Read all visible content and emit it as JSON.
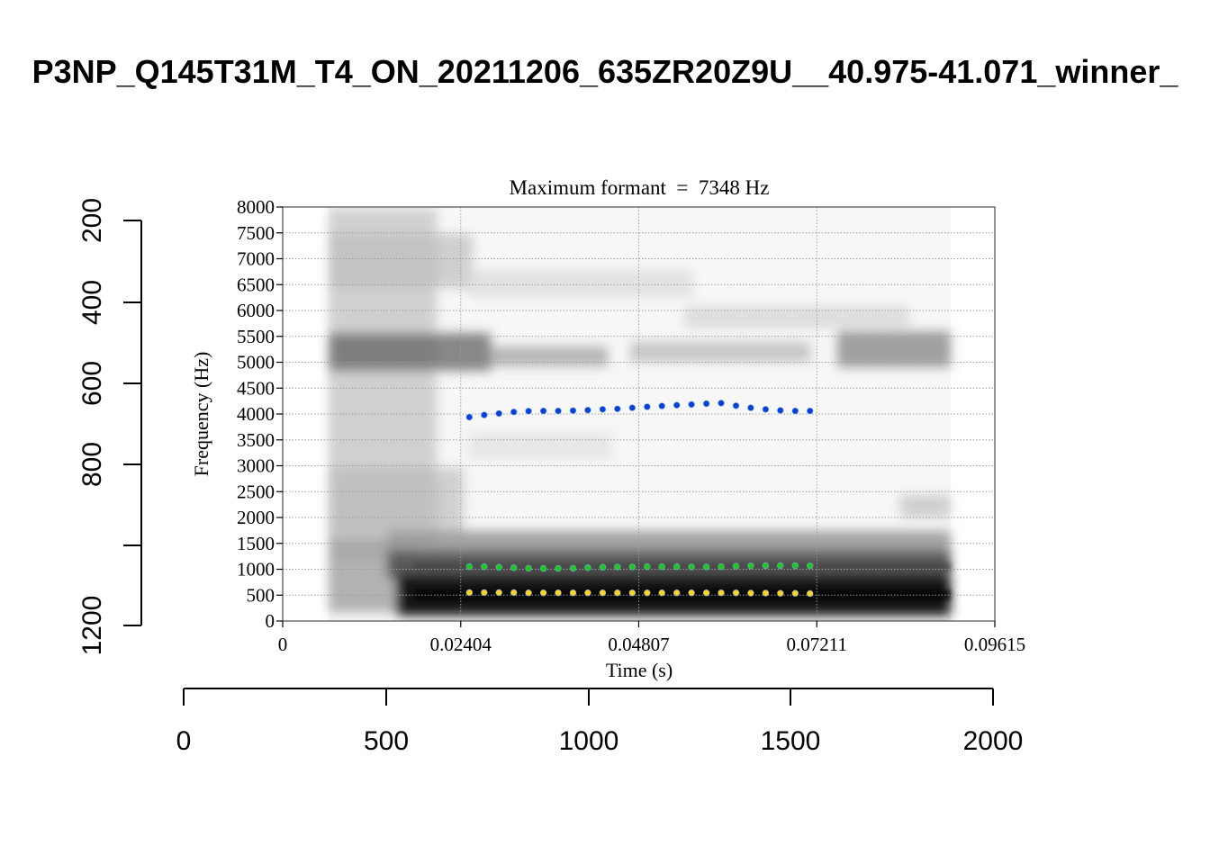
{
  "page_title": "P3NP_Q145T31M_T4_ON_20211206_635ZR20Z9U__40.975-41.071_winner_",
  "outer_axes": {
    "left_ticks": [
      "200",
      "400",
      "600",
      "800",
      "1200"
    ],
    "bottom_ticks": [
      "0",
      "500",
      "1000",
      "1500",
      "2000"
    ]
  },
  "chart_data": {
    "type": "scatter",
    "background": "spectrogram",
    "title": "Maximum formant  =  7348 Hz",
    "xlabel": "Time (s)",
    "ylabel": "Frequency (Hz)",
    "xlim": [
      0,
      0.09615
    ],
    "ylim": [
      0,
      8000
    ],
    "x_ticks": [
      "0",
      "0.02404",
      "0.04807",
      "0.07211",
      "0.09615"
    ],
    "y_ticks": [
      "0",
      "500",
      "1000",
      "1500",
      "2000",
      "2500",
      "3000",
      "3500",
      "4000",
      "4500",
      "5000",
      "5500",
      "6000",
      "6500",
      "7000",
      "7500",
      "8000"
    ],
    "grid": true,
    "x": [
      0.0252,
      0.0272,
      0.0292,
      0.0312,
      0.0332,
      0.0352,
      0.0372,
      0.0392,
      0.0412,
      0.0432,
      0.0452,
      0.0472,
      0.0492,
      0.0512,
      0.0532,
      0.0552,
      0.0572,
      0.0592,
      0.0612,
      0.0632,
      0.0652,
      0.0672,
      0.0692,
      0.0712
    ],
    "series": [
      {
        "color": "#ffd21f",
        "values": [
          550,
          550,
          550,
          550,
          545,
          545,
          545,
          545,
          545,
          545,
          545,
          545,
          545,
          545,
          545,
          545,
          545,
          545,
          545,
          540,
          540,
          535,
          535,
          530
        ]
      },
      {
        "color": "#1ec81e",
        "values": [
          1050,
          1050,
          1040,
          1030,
          1020,
          1015,
          1015,
          1020,
          1030,
          1040,
          1045,
          1045,
          1050,
          1050,
          1050,
          1045,
          1045,
          1050,
          1060,
          1065,
          1070,
          1070,
          1070,
          1065
        ]
      },
      {
        "color": "#0a3fd8",
        "values": [
          3940,
          3980,
          4010,
          4040,
          4055,
          4060,
          4060,
          4065,
          4075,
          4090,
          4100,
          4120,
          4140,
          4155,
          4170,
          4185,
          4200,
          4210,
          4160,
          4120,
          4090,
          4070,
          4060,
          4060
        ]
      }
    ]
  }
}
